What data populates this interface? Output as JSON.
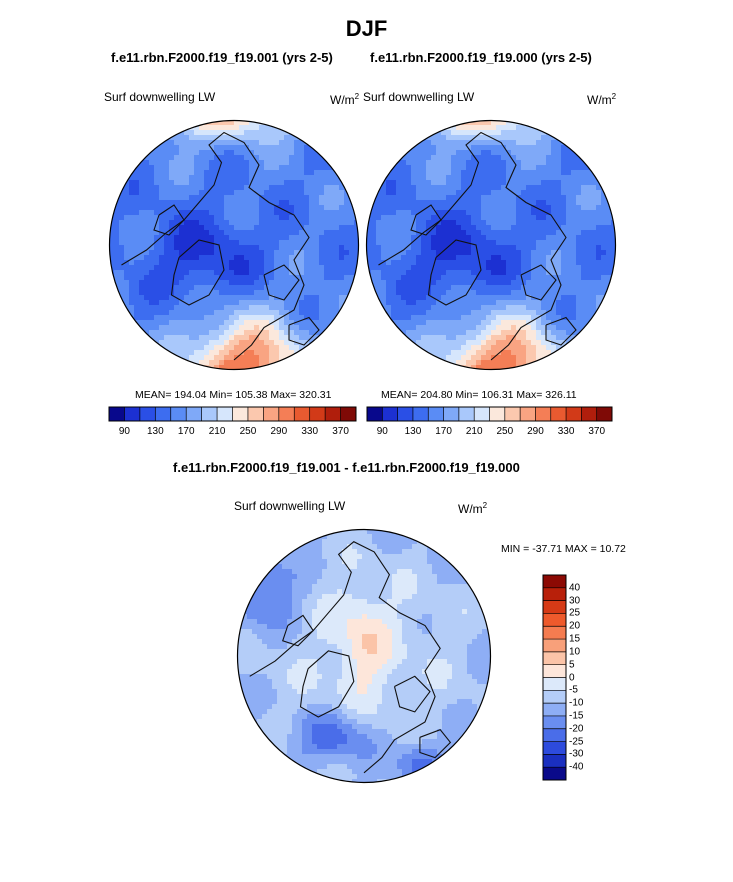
{
  "figure": {
    "title": "DJF",
    "panel_a": {
      "title": "f.e11.rbn.F2000.f19_f19.001 (yrs 2-5)",
      "variable": "Surf downwelling LW",
      "units_base": "W/m",
      "units_exp": "2",
      "stats": "MEAN= 194.04  Min= 105.38  Max= 320.31"
    },
    "panel_b": {
      "title": "f.e11.rbn.F2000.f19_f19.000 (yrs 2-5)",
      "variable": "Surf downwelling LW",
      "units_base": "W/m",
      "units_exp": "2",
      "stats": "MEAN= 204.80  Min= 106.31  Max= 326.11"
    },
    "panel_diff": {
      "title": "f.e11.rbn.F2000.f19_f19.001 - f.e11.rbn.F2000.f19_f19.000",
      "variable": "Surf downwelling LW",
      "units_base": "W/m",
      "units_exp": "2",
      "stats": "MIN = -37.71 MAX =  10.72"
    }
  },
  "chart_data": [
    {
      "type": "heatmap",
      "projection": "north polar stereographic",
      "title": "f.e11.rbn.F2000.f19_f19.001 (yrs 2-5)",
      "variable": "Surf downwelling LW",
      "units": "W/m2",
      "mean": 194.04,
      "min": 105.38,
      "max": 320.31,
      "colorbar_ticks": [
        90,
        130,
        170,
        210,
        250,
        290,
        330,
        370
      ],
      "colorbar_levels": [
        90,
        110,
        130,
        150,
        170,
        190,
        210,
        230,
        250,
        270,
        290,
        310,
        330,
        350,
        370
      ],
      "colors": [
        "#08088c",
        "#1c30d2",
        "#2a4fe6",
        "#3d6df0",
        "#5a8cf5",
        "#7fa9f8",
        "#a9c8fb",
        "#d6e6fc",
        "#fbe8dc",
        "#fbc8ae",
        "#f9a482",
        "#f47e56",
        "#e95a30",
        "#d23a18",
        "#b01e0c",
        "#7f0a06"
      ]
    },
    {
      "type": "heatmap",
      "projection": "north polar stereographic",
      "title": "f.e11.rbn.F2000.f19_f19.000 (yrs 2-5)",
      "variable": "Surf downwelling LW",
      "units": "W/m2",
      "mean": 204.8,
      "min": 106.31,
      "max": 326.11,
      "colorbar_ticks": [
        90,
        130,
        170,
        210,
        250,
        290,
        330,
        370
      ],
      "colorbar_levels": [
        90,
        110,
        130,
        150,
        170,
        190,
        210,
        230,
        250,
        270,
        290,
        310,
        330,
        350,
        370
      ],
      "colors": [
        "#08088c",
        "#1c30d2",
        "#2a4fe6",
        "#3d6df0",
        "#5a8cf5",
        "#7fa9f8",
        "#a9c8fb",
        "#d6e6fc",
        "#fbe8dc",
        "#fbc8ae",
        "#f9a482",
        "#f47e56",
        "#e95a30",
        "#d23a18",
        "#b01e0c",
        "#7f0a06"
      ]
    },
    {
      "type": "heatmap",
      "projection": "north polar stereographic",
      "title": "f.e11.rbn.F2000.f19_f19.001 - f.e11.rbn.F2000.f19_f19.000",
      "variable": "Surf downwelling LW",
      "units": "W/m2",
      "min": -37.71,
      "max": 10.72,
      "colorbar_levels": [
        40,
        30,
        25,
        20,
        15,
        10,
        5,
        0,
        -5,
        -10,
        -15,
        -20,
        -25,
        -30,
        -40
      ],
      "colorbar_labels": [
        "40",
        "30",
        "25",
        "20",
        "15",
        "10",
        "5",
        "0",
        "-5",
        "-10",
        "-15",
        "-20",
        "-25",
        "-30",
        "-40"
      ],
      "colors": [
        "#8c0a04",
        "#b8200a",
        "#d63a16",
        "#ee5a2c",
        "#f57c50",
        "#f8a07a",
        "#fbc4a8",
        "#fde6da",
        "#dce9fa",
        "#b4cdf8",
        "#8eaef5",
        "#6a8ef0",
        "#4a6de9",
        "#2d4bdd",
        "#1a2fc0",
        "#0a0a8a"
      ]
    }
  ]
}
